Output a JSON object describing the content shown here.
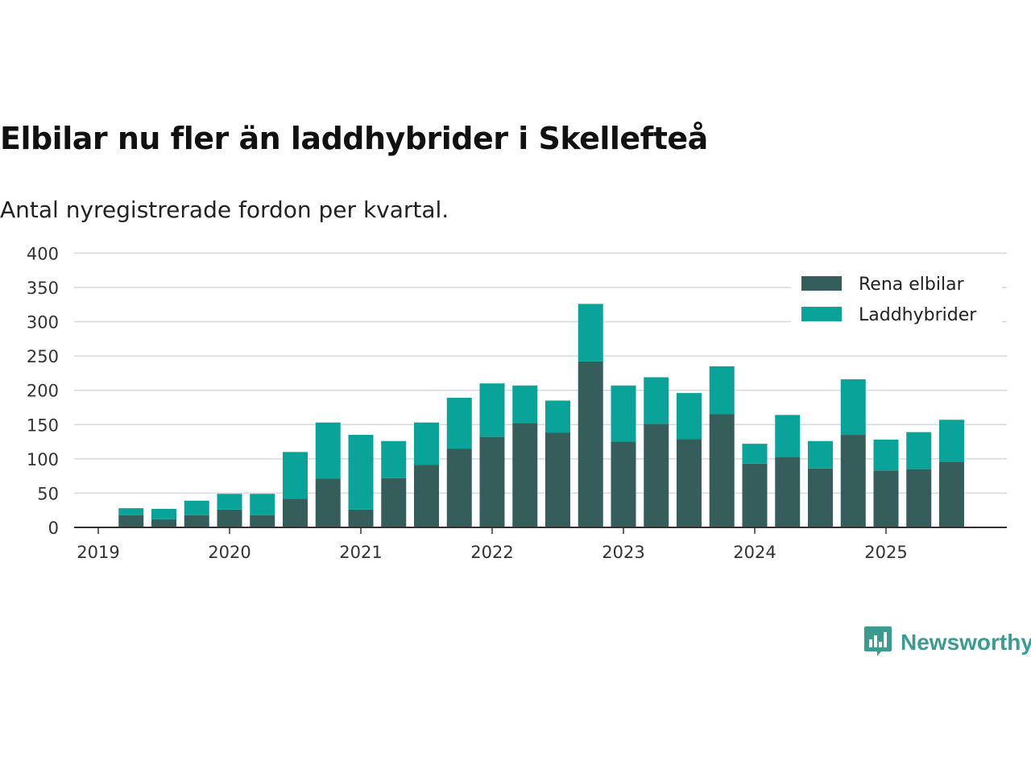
{
  "title": "Elbilar nu fler än laddhybrider i Skellefteå",
  "subtitle": "Antal nyregistrerade fordon per kvartal.",
  "brand": {
    "name": "Newsworthy",
    "logo_icon": "newsworthy-logo-icon",
    "color": "#3c9b8f"
  },
  "colors": {
    "rena_elbilar": "#355e5b",
    "laddhybrider": "#0aa39a",
    "grid": "#d9d9d9",
    "axis": "#333333"
  },
  "chart_data": {
    "type": "bar",
    "stacked": true,
    "title": "Elbilar nu fler än laddhybrider i Skellefteå",
    "subtitle": "Antal nyregistrerade fordon per kvartal.",
    "xlabel": "",
    "ylabel": "",
    "ylim": [
      0,
      400
    ],
    "yticks": [
      0,
      50,
      100,
      150,
      200,
      250,
      300,
      350,
      400
    ],
    "xticks": [
      "2019",
      "2020",
      "2021",
      "2022",
      "2023",
      "2024",
      "2025"
    ],
    "legend_position": "top-right",
    "grid": true,
    "categories": [
      "2019 Q2",
      "2019 Q3",
      "2019 Q4",
      "2020 Q1",
      "2020 Q2",
      "2020 Q3",
      "2020 Q4",
      "2021 Q1",
      "2021 Q2",
      "2021 Q3",
      "2021 Q4",
      "2022 Q1",
      "2022 Q2",
      "2022 Q3",
      "2022 Q4",
      "2023 Q1",
      "2023 Q2",
      "2023 Q3",
      "2023 Q4",
      "2024 Q1",
      "2024 Q2",
      "2024 Q3",
      "2024 Q4",
      "2025 Q1",
      "2025 Q2",
      "2025 Q3"
    ],
    "series": [
      {
        "name": "Rena elbilar",
        "values": [
          18,
          12,
          18,
          26,
          18,
          42,
          71,
          26,
          72,
          91,
          115,
          132,
          152,
          138,
          242,
          125,
          151,
          129,
          165,
          93,
          103,
          86,
          135,
          83,
          85,
          96
        ]
      },
      {
        "name": "Laddhybrider",
        "values": [
          10,
          15,
          21,
          23,
          31,
          68,
          82,
          109,
          54,
          62,
          74,
          78,
          55,
          47,
          84,
          82,
          68,
          67,
          70,
          29,
          61,
          40,
          81,
          45,
          54,
          61
        ]
      }
    ]
  }
}
